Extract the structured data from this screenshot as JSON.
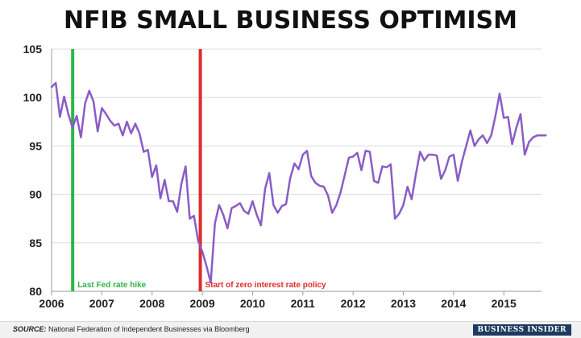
{
  "chart_data": {
    "type": "line",
    "title": "NFIB SMALL BUSINESS OPTIMISM",
    "xlabel": "",
    "ylabel": "",
    "xlim": [
      2006.0,
      2015.75
    ],
    "ylim": [
      80,
      105
    ],
    "y_ticks": [
      "80",
      "85",
      "90",
      "95",
      "100",
      "105"
    ],
    "x_ticks": [
      "2006",
      "2007",
      "2008",
      "2009",
      "2010",
      "2011",
      "2012",
      "2013",
      "2014",
      "2015"
    ],
    "grid": "horizontal",
    "line_color": "#8a5cc7",
    "x_start": 2006.0,
    "x_step_months": 1,
    "values": [
      101.1,
      101.5,
      98.0,
      100.1,
      98.3,
      96.9,
      98.1,
      95.9,
      99.4,
      100.7,
      99.6,
      96.5,
      98.9,
      98.3,
      97.6,
      97.1,
      97.3,
      96.1,
      97.5,
      96.3,
      97.3,
      96.3,
      94.4,
      94.6,
      91.8,
      93.0,
      89.6,
      91.5,
      89.3,
      89.3,
      88.2,
      91.1,
      92.9,
      87.5,
      87.8,
      85.2,
      84.1,
      82.6,
      80.9,
      87.0,
      88.9,
      87.9,
      86.5,
      88.6,
      88.8,
      89.1,
      88.3,
      88.0,
      89.3,
      87.9,
      86.8,
      90.6,
      92.2,
      88.9,
      88.1,
      88.8,
      89.0,
      91.7,
      93.2,
      92.6,
      94.1,
      94.5,
      91.9,
      91.2,
      90.9,
      90.8,
      89.9,
      88.1,
      88.9,
      90.2,
      92.0,
      93.8,
      93.9,
      94.3,
      92.5,
      94.5,
      94.4,
      91.4,
      91.2,
      92.9,
      92.8,
      93.1,
      87.5,
      88.0,
      88.9,
      90.8,
      89.5,
      92.1,
      94.4,
      93.5,
      94.1,
      94.1,
      94.0,
      91.6,
      92.5,
      93.9,
      94.1,
      91.4,
      93.4,
      95.0,
      96.6,
      95.0,
      95.7,
      96.1,
      95.3,
      96.1,
      98.1,
      100.4,
      97.9,
      98.0,
      95.2,
      96.9,
      98.3,
      94.1,
      95.4,
      95.9,
      96.1,
      96.1,
      96.1
    ],
    "annotations": [
      {
        "label": "Last Fed rate hike",
        "x": 2006.42,
        "color": "#2fb54a"
      },
      {
        "label": "Start of zero interest rate policy",
        "x": 2008.96,
        "color": "#e02b2b"
      }
    ]
  },
  "footer": {
    "source_label": "SOURCE:",
    "source_text": " National Federation of Independent Businesses via Bloomberg",
    "logo_text": "BUSINESS INSIDER"
  }
}
